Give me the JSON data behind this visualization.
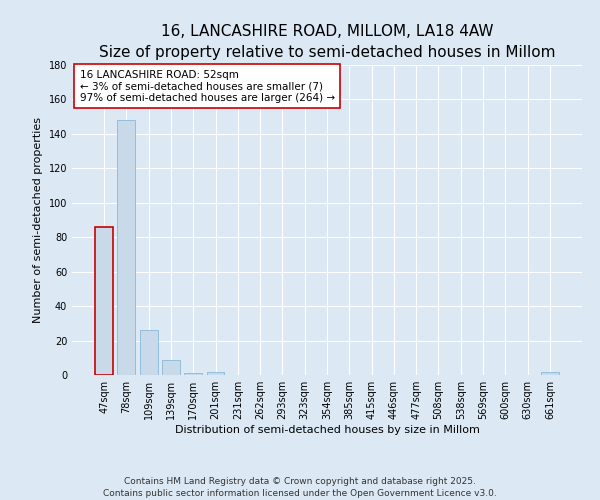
{
  "title_line1": "16, LANCASHIRE ROAD, MILLOM, LA18 4AW",
  "title_line2": "Size of property relative to semi-detached houses in Millom",
  "xlabel": "Distribution of semi-detached houses by size in Millom",
  "ylabel": "Number of semi-detached properties",
  "categories": [
    "47sqm",
    "78sqm",
    "109sqm",
    "139sqm",
    "170sqm",
    "201sqm",
    "231sqm",
    "262sqm",
    "293sqm",
    "323sqm",
    "354sqm",
    "385sqm",
    "415sqm",
    "446sqm",
    "477sqm",
    "508sqm",
    "538sqm",
    "569sqm",
    "600sqm",
    "630sqm",
    "661sqm"
  ],
  "values": [
    86,
    148,
    26,
    9,
    1,
    2,
    0,
    0,
    0,
    0,
    0,
    0,
    0,
    0,
    0,
    0,
    0,
    0,
    0,
    0,
    2
  ],
  "bar_color": "#c8daea",
  "bar_edge_color": "#7bafd4",
  "highlight_bar_index": 0,
  "highlight_edge_color": "#cc0000",
  "annotation_title": "16 LANCASHIRE ROAD: 52sqm",
  "annotation_line2": "← 3% of semi-detached houses are smaller (7)",
  "annotation_line3": "97% of semi-detached houses are larger (264) →",
  "annotation_box_facecolor": "#ffffff",
  "annotation_box_edgecolor": "#cc0000",
  "ylim": [
    0,
    180
  ],
  "yticks": [
    0,
    20,
    40,
    60,
    80,
    100,
    120,
    140,
    160,
    180
  ],
  "background_color": "#dce9f5",
  "plot_bg_color": "#dce9f5",
  "footer_line1": "Contains HM Land Registry data © Crown copyright and database right 2025.",
  "footer_line2": "Contains public sector information licensed under the Open Government Licence v3.0.",
  "title_fontsize": 11,
  "subtitle_fontsize": 9,
  "axis_label_fontsize": 8,
  "tick_fontsize": 7,
  "annotation_fontsize": 7.5,
  "footer_fontsize": 6.5
}
